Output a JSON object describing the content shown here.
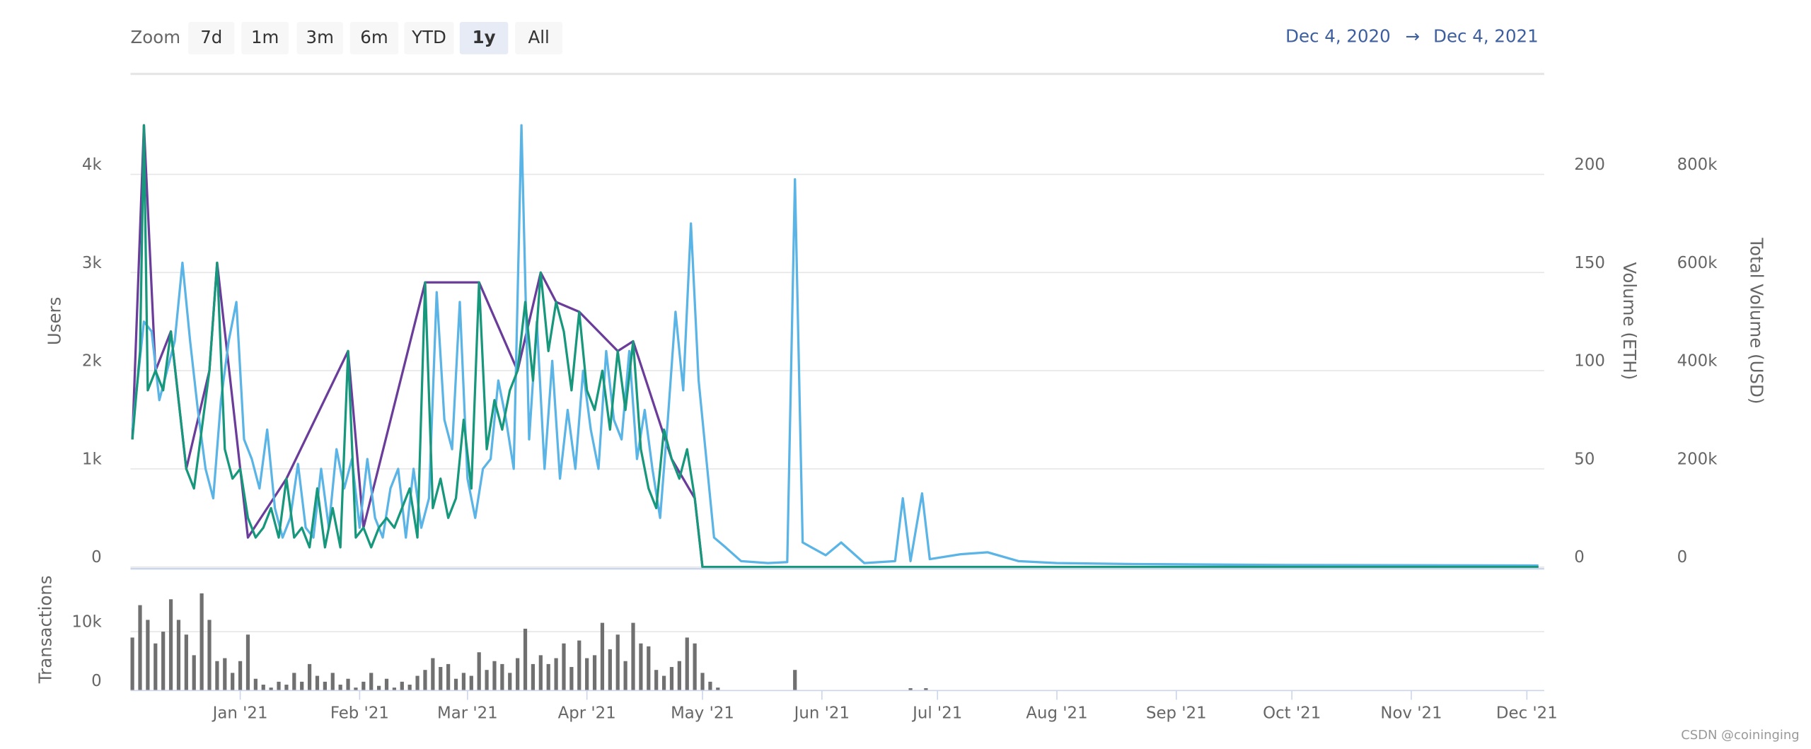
{
  "toolbar": {
    "zoom_label": "Zoom",
    "buttons": [
      "7d",
      "1m",
      "3m",
      "6m",
      "YTD",
      "1y",
      "All"
    ],
    "selected_button": 5,
    "range_from": "Dec 4, 2020",
    "arrow": "→",
    "range_to": "Dec 4, 2021"
  },
  "watermark": "CSDN @coininging",
  "chart_data": [
    {
      "type": "line",
      "ylabel": "Users",
      "y2label": "Volume (ETH)",
      "y3label": "Total Volume (USD)",
      "xlim": [
        0,
        365
      ],
      "ylim": [
        0,
        5000
      ],
      "yticks": [
        0,
        {
          "value": 1000,
          "label": "1k"
        },
        {
          "value": 2000,
          "label": "2k"
        },
        {
          "value": 3000,
          "label": "3k"
        },
        {
          "value": 4000,
          "label": "4k"
        }
      ],
      "y2lim": [
        0,
        250
      ],
      "y2ticks": [
        0,
        50,
        100,
        150,
        200
      ],
      "y3lim": [
        0,
        1000000
      ],
      "y3ticks": [
        0,
        {
          "value": 200000,
          "label": "200k"
        },
        {
          "value": 400000,
          "label": "400k"
        },
        {
          "value": 600000,
          "label": "600k"
        },
        {
          "value": 800000,
          "label": "800k"
        }
      ],
      "grid": true,
      "series": [
        {
          "color": "#6a3d9a",
          "axis": "y3",
          "x": [
            0,
            3,
            6,
            10,
            14,
            20,
            22,
            30,
            40,
            56,
            60,
            76,
            90,
            100,
            106,
            110,
            116,
            126,
            130,
            140,
            146,
            148,
            365
          ],
          "values": [
            260000,
            900000,
            400000,
            480000,
            200000,
            400000,
            620000,
            60000,
            180000,
            440000,
            80000,
            580000,
            580000,
            400000,
            600000,
            540000,
            520000,
            440000,
            460000,
            220000,
            140000,
            0,
            0
          ]
        },
        {
          "color": "#5ab4e5",
          "axis": "y",
          "x": [
            0,
            3,
            5,
            7,
            9,
            11,
            13,
            15,
            17,
            19,
            21,
            23,
            25,
            27,
            29,
            31,
            33,
            35,
            37,
            39,
            41,
            43,
            45,
            47,
            49,
            51,
            53,
            55,
            57,
            59,
            61,
            63,
            65,
            67,
            69,
            71,
            73,
            75,
            77,
            79,
            81,
            83,
            85,
            87,
            89,
            91,
            93,
            95,
            97,
            99,
            101,
            103,
            105,
            107,
            109,
            111,
            113,
            115,
            117,
            119,
            121,
            123,
            125,
            127,
            129,
            131,
            133,
            135,
            137,
            139,
            141,
            143,
            145,
            147,
            149,
            151,
            154,
            158,
            165,
            170,
            172,
            174,
            180,
            184,
            190,
            198,
            200,
            202,
            205,
            207,
            215,
            222,
            230,
            240,
            260,
            300,
            365
          ],
          "values": [
            1400,
            2500,
            2400,
            1700,
            2000,
            2300,
            3100,
            2300,
            1600,
            1000,
            700,
            1700,
            2300,
            2700,
            1300,
            1100,
            800,
            1400,
            600,
            300,
            500,
            1050,
            400,
            300,
            1000,
            400,
            1200,
            800,
            1100,
            400,
            1100,
            500,
            300,
            800,
            1000,
            300,
            1000,
            400,
            700,
            2800,
            1500,
            1200,
            2700,
            900,
            500,
            1000,
            1100,
            1900,
            1500,
            1000,
            4500,
            1300,
            2500,
            1000,
            2100,
            900,
            1600,
            1000,
            2000,
            1400,
            1000,
            2200,
            1500,
            1300,
            2200,
            1100,
            1600,
            1000,
            500,
            1500,
            2600,
            1800,
            3500,
            1900,
            1100,
            300,
            200,
            60,
            40,
            50,
            3950,
            250,
            120,
            250,
            40,
            60,
            700,
            60,
            750,
            80,
            130,
            150,
            60,
            40,
            30,
            20,
            15
          ]
        },
        {
          "color": "#17977b",
          "axis": "y2",
          "x": [
            0,
            2,
            3,
            4,
            6,
            8,
            10,
            12,
            14,
            16,
            18,
            20,
            22,
            24,
            26,
            28,
            30,
            32,
            34,
            36,
            38,
            40,
            42,
            44,
            46,
            48,
            50,
            52,
            54,
            56,
            58,
            60,
            62,
            64,
            66,
            68,
            70,
            72,
            74,
            76,
            78,
            80,
            82,
            84,
            86,
            88,
            90,
            92,
            94,
            96,
            98,
            100,
            102,
            104,
            106,
            108,
            110,
            112,
            114,
            116,
            118,
            120,
            122,
            124,
            126,
            128,
            130,
            132,
            134,
            136,
            138,
            140,
            142,
            144,
            146,
            148,
            365
          ],
          "values": [
            65,
            110,
            225,
            90,
            100,
            90,
            120,
            85,
            50,
            40,
            70,
            100,
            155,
            60,
            45,
            50,
            25,
            15,
            20,
            30,
            15,
            45,
            15,
            20,
            10,
            40,
            10,
            30,
            10,
            110,
            15,
            20,
            10,
            20,
            25,
            20,
            30,
            40,
            15,
            145,
            30,
            45,
            25,
            35,
            75,
            40,
            145,
            60,
            85,
            70,
            90,
            100,
            135,
            95,
            150,
            110,
            135,
            120,
            90,
            130,
            90,
            80,
            100,
            70,
            110,
            80,
            115,
            60,
            40,
            30,
            70,
            55,
            45,
            60,
            35,
            0,
            0
          ]
        }
      ]
    },
    {
      "type": "bar",
      "ylabel": "Transactions",
      "xlim": [
        0,
        365
      ],
      "xticks": [
        {
          "value": 28,
          "label": "Jan '21"
        },
        {
          "value": 59,
          "label": "Feb '21"
        },
        {
          "value": 87,
          "label": "Mar '21"
        },
        {
          "value": 118,
          "label": "Apr '21"
        },
        {
          "value": 148,
          "label": "May '21"
        },
        {
          "value": 179,
          "label": "Jun '21"
        },
        {
          "value": 209,
          "label": "Jul '21"
        },
        {
          "value": 240,
          "label": "Aug '21"
        },
        {
          "value": 271,
          "label": "Sep '21"
        },
        {
          "value": 301,
          "label": "Oct '21"
        },
        {
          "value": 332,
          "label": "Nov '21"
        },
        {
          "value": 362,
          "label": "Dec '21"
        }
      ],
      "ylim": [
        0,
        20000
      ],
      "yticks": [
        0,
        {
          "value": 10000,
          "label": "10k"
        }
      ],
      "grid": true,
      "color": "#707070",
      "x": [
        0,
        2,
        4,
        6,
        8,
        10,
        12,
        14,
        16,
        18,
        20,
        22,
        24,
        26,
        28,
        30,
        32,
        34,
        36,
        38,
        40,
        42,
        44,
        46,
        48,
        50,
        52,
        54,
        56,
        58,
        60,
        62,
        64,
        66,
        68,
        70,
        72,
        74,
        76,
        78,
        80,
        82,
        84,
        86,
        88,
        90,
        92,
        94,
        96,
        98,
        100,
        102,
        104,
        106,
        108,
        110,
        112,
        114,
        116,
        118,
        120,
        122,
        124,
        126,
        128,
        130,
        132,
        134,
        136,
        138,
        140,
        142,
        144,
        146,
        148,
        150,
        152,
        172,
        202,
        206
      ],
      "values": [
        9000,
        14500,
        12000,
        8000,
        10000,
        15500,
        12000,
        9500,
        6000,
        16500,
        12000,
        5000,
        5500,
        3000,
        5000,
        9500,
        2000,
        1000,
        500,
        1500,
        1000,
        3000,
        1500,
        4500,
        2500,
        1500,
        3000,
        1000,
        2000,
        500,
        1500,
        3000,
        800,
        2000,
        500,
        1500,
        1000,
        2500,
        3500,
        5500,
        4000,
        4500,
        2000,
        3000,
        2500,
        6500,
        3500,
        5000,
        4500,
        3000,
        5500,
        10500,
        4500,
        6000,
        4500,
        5500,
        8000,
        4000,
        8500,
        5500,
        6000,
        11500,
        7000,
        9500,
        5000,
        11500,
        8000,
        7500,
        3500,
        2500,
        4000,
        5000,
        9000,
        8000,
        3000,
        1500,
        500,
        3500,
        400,
        400
      ]
    }
  ]
}
